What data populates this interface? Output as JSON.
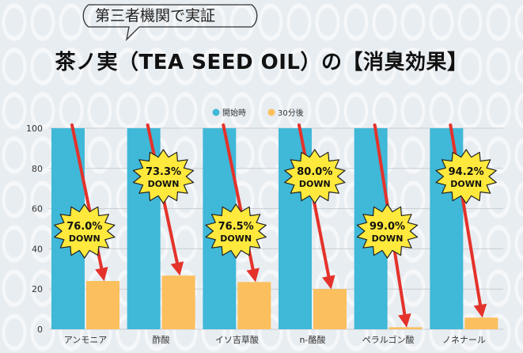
{
  "header": {
    "subtitle": "第三者機関で実証",
    "title": "茶ノ実（TEA SEED OIL）の【消臭効果】"
  },
  "colors": {
    "start": "#40b8d8",
    "after": "#fbbf5e",
    "arrow": "#e4322b",
    "badge": "#ffe93c"
  },
  "chart_data": {
    "type": "bar",
    "title": "茶ノ実（TEA SEED OIL）の【消臭効果】",
    "categories": [
      "アンモニア",
      "酢酸",
      "イソ吉草酸",
      "n-酪酸",
      "ペラルゴン酸",
      "ノネナール"
    ],
    "series": [
      {
        "name": "開始時",
        "values": [
          100,
          100,
          100,
          100,
          100,
          100
        ]
      },
      {
        "name": "30分後",
        "values": [
          24,
          26.7,
          23.5,
          20,
          1,
          5.8
        ]
      }
    ],
    "reduction_labels": [
      "76.0%",
      "73.3%",
      "76.5%",
      "80.0%",
      "99.0%",
      "94.2%"
    ],
    "down_label": "DOWN",
    "badge_positions": [
      "low",
      "high",
      "low",
      "high",
      "low",
      "high"
    ],
    "yticks": [
      0,
      20,
      40,
      60,
      80,
      100
    ],
    "ylim": [
      0,
      100
    ],
    "xlabel": "",
    "ylabel": "",
    "legend_position": "top-center",
    "grid": true
  }
}
